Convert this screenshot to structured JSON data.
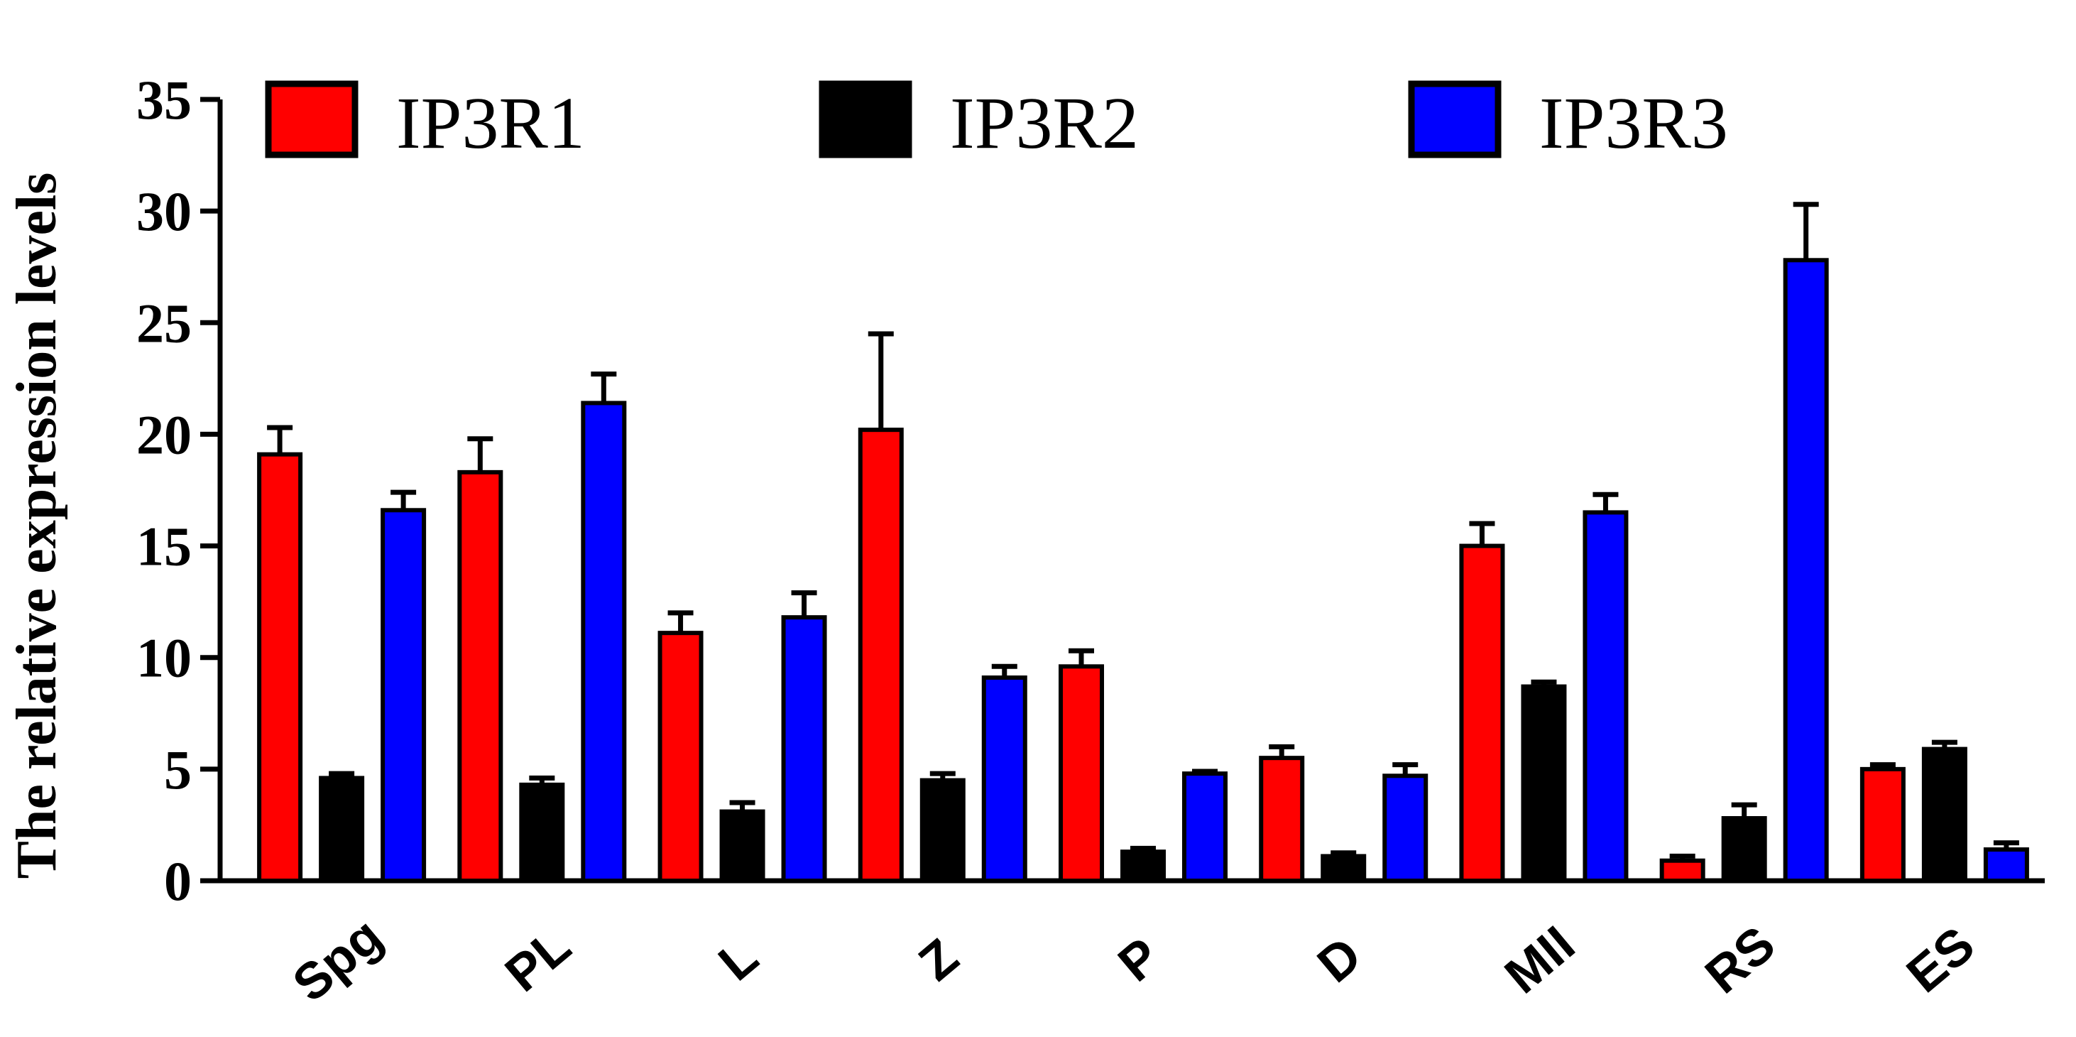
{
  "chart_data": {
    "type": "bar",
    "ylabel": "The relative expression levels",
    "xlabel": "",
    "ylim": [
      0,
      35
    ],
    "yticks": [
      0,
      5,
      10,
      15,
      20,
      25,
      30,
      35
    ],
    "grid": false,
    "legend_position": "top",
    "categories": [
      "Spg",
      "PL",
      "L",
      "Z",
      "P",
      "D",
      "MII",
      "RS",
      "ES"
    ],
    "series": [
      {
        "name": "IP3R1",
        "color": "#ff0000",
        "values": [
          19.1,
          18.3,
          11.1,
          20.2,
          9.6,
          5.5,
          15.0,
          0.9,
          5.0
        ],
        "errors": [
          1.2,
          1.5,
          0.9,
          4.3,
          0.7,
          0.5,
          1.0,
          0.2,
          0.2
        ]
      },
      {
        "name": "IP3R2",
        "color": "#000000",
        "values": [
          4.6,
          4.3,
          3.1,
          4.5,
          1.3,
          1.1,
          8.7,
          2.8,
          5.9
        ],
        "errors": [
          0.2,
          0.3,
          0.4,
          0.3,
          0.15,
          0.15,
          0.2,
          0.6,
          0.3
        ]
      },
      {
        "name": "IP3R3",
        "color": "#0000ff",
        "values": [
          16.6,
          21.4,
          11.8,
          9.1,
          4.8,
          4.7,
          16.5,
          27.8,
          1.4
        ],
        "errors": [
          0.8,
          1.3,
          1.1,
          0.5,
          0.1,
          0.5,
          0.8,
          2.5,
          0.3
        ]
      }
    ]
  }
}
